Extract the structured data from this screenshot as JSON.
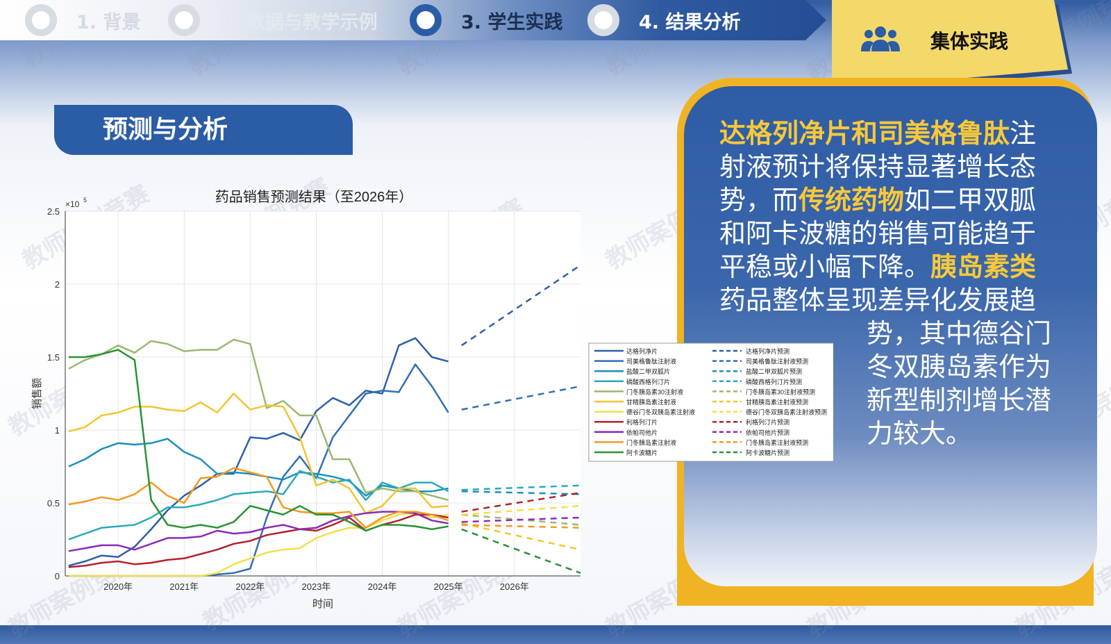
{
  "nav": {
    "steps": [
      {
        "label": "1. 背景",
        "state": "done"
      },
      {
        "label": "2. 数据与教学示例",
        "state": "done"
      },
      {
        "label": "3. 学生实践",
        "state": "active"
      },
      {
        "label": "4. 结果分析",
        "state": "upcoming"
      }
    ],
    "tab_label": "集体实践",
    "tab_icon": "group-people-icon"
  },
  "watermark_text": "教师案例竞赛",
  "section_title": "预测与分析",
  "panel": {
    "segments": [
      {
        "text": "达格列净片和司美格鲁肽",
        "highlight": true
      },
      {
        "text": "注射液预计将保持显著增长态势，而",
        "highlight": false
      },
      {
        "text": "传统药物",
        "highlight": true
      },
      {
        "text": "如二甲双胍和阿卡波糖的销售可能趋于平稳或小幅下降。",
        "highlight": false
      },
      {
        "text": "胰岛素类",
        "highlight": true
      },
      {
        "text": "药品整体呈现差异化发展趋",
        "highlight": false
      }
    ],
    "tail": "势，其中德谷门冬双胰岛素作为新型制剂增长潜力较大。"
  },
  "colors": {
    "primary": "#2b5ca6",
    "accent_yellow": "#f7c83a",
    "tab_yellow": "#f3d86a",
    "panel_border": "#f0b324"
  },
  "chart_data": {
    "type": "line",
    "title": "药品销售预测结果（至2026年）",
    "xlabel": "时间",
    "ylabel": "销售额",
    "y_exponent_label": "×10",
    "y_exponent_power": "5",
    "ylim": [
      0,
      2.5
    ],
    "yticks": [
      0,
      0.5,
      1,
      1.5,
      2,
      2.5
    ],
    "ytick_labels": [
      "0",
      "0.5",
      "1",
      "1.5",
      "2",
      "2.5"
    ],
    "xlim": [
      2019.2,
      2027.0
    ],
    "xticks": [
      2020,
      2021,
      2022,
      2023,
      2024,
      2025,
      2026
    ],
    "xtick_labels": [
      "2020年",
      "2021年",
      "2022年",
      "2023年",
      "2024年",
      "2025年",
      "2026年"
    ],
    "grid": true,
    "legend_placement": "right-outside",
    "x_hist": [
      2019.25,
      2019.5,
      2019.75,
      2020.0,
      2020.25,
      2020.5,
      2020.75,
      2021.0,
      2021.25,
      2021.5,
      2021.75,
      2022.0,
      2022.25,
      2022.5,
      2022.75,
      2023.0,
      2023.25,
      2023.5,
      2023.75,
      2024.0,
      2024.25,
      2024.5,
      2024.75,
      2025.0
    ],
    "x_fore": [
      2025.2,
      2027.0
    ],
    "series": [
      {
        "name": "达格列净片",
        "color": "#2e5fa8",
        "values": [
          0.07,
          0.1,
          0.14,
          0.13,
          0.2,
          0.32,
          0.45,
          0.55,
          0.62,
          0.7,
          0.7,
          0.95,
          0.94,
          0.98,
          0.93,
          1.13,
          1.22,
          1.17,
          1.27,
          1.25,
          1.58,
          1.63,
          1.5,
          1.47
        ],
        "forecast": [
          1.58,
          2.13
        ]
      },
      {
        "name": "司美格鲁肽注射液",
        "color": "#2f6fb5",
        "values": [
          0,
          0,
          0,
          0,
          0,
          0,
          0,
          0,
          0,
          0.01,
          0.02,
          0.05,
          0.4,
          0.68,
          0.82,
          0.67,
          0.95,
          1.1,
          1.25,
          1.27,
          1.26,
          1.45,
          1.3,
          1.12
        ],
        "forecast": [
          1.14,
          1.3
        ]
      },
      {
        "name": "盐酸二甲双胍片",
        "color": "#1a8fbf",
        "values": [
          0.75,
          0.8,
          0.87,
          0.91,
          0.9,
          0.91,
          0.94,
          0.85,
          0.8,
          0.7,
          0.71,
          0.7,
          0.68,
          0.66,
          0.71,
          0.7,
          0.68,
          0.65,
          0.55,
          0.62,
          0.6,
          0.58,
          0.58,
          0.6
        ],
        "forecast": [
          0.58,
          0.56
        ]
      },
      {
        "name": "磷酸西格列汀片",
        "color": "#2aa9b8",
        "values": [
          0.25,
          0.29,
          0.33,
          0.34,
          0.35,
          0.4,
          0.47,
          0.47,
          0.49,
          0.52,
          0.56,
          0.57,
          0.58,
          0.56,
          0.72,
          0.68,
          0.64,
          0.66,
          0.52,
          0.64,
          0.6,
          0.64,
          0.64,
          0.58
        ],
        "forecast": [
          0.59,
          0.62
        ]
      },
      {
        "name": "门冬胰岛素30注射液",
        "color": "#9ab86e",
        "values": [
          1.42,
          1.48,
          1.52,
          1.58,
          1.53,
          1.61,
          1.59,
          1.54,
          1.55,
          1.55,
          1.62,
          1.59,
          1.15,
          1.2,
          1.1,
          1.1,
          0.8,
          0.8,
          0.57,
          0.6,
          0.58,
          0.58,
          0.55,
          0.52
        ],
        "forecast": [
          0.42,
          0.35
        ]
      },
      {
        "name": "甘精胰岛素注射液",
        "color": "#f2c531",
        "values": [
          0.99,
          1.02,
          1.1,
          1.12,
          1.16,
          1.16,
          1.14,
          1.13,
          1.19,
          1.12,
          1.25,
          1.14,
          1.17,
          1.16,
          0.95,
          0.62,
          0.66,
          0.6,
          0.43,
          0.48,
          0.6,
          0.6,
          0.47,
          0.48
        ],
        "forecast": [
          0.36,
          0.18
        ]
      },
      {
        "name": "德谷门冬双胰岛素注射液",
        "color": "#f2e04a",
        "values": [
          0,
          0,
          0,
          0,
          0,
          0,
          0,
          0,
          0,
          0.02,
          0.08,
          0.12,
          0.16,
          0.18,
          0.19,
          0.26,
          0.3,
          0.33,
          0.33,
          0.38,
          0.42,
          0.43,
          0.4,
          0.42
        ],
        "forecast": [
          0.42,
          0.48
        ]
      },
      {
        "name": "利格列汀片",
        "color": "#b3212f",
        "values": [
          0.06,
          0.07,
          0.09,
          0.1,
          0.08,
          0.09,
          0.11,
          0.12,
          0.15,
          0.18,
          0.22,
          0.24,
          0.28,
          0.3,
          0.32,
          0.31,
          0.35,
          0.4,
          0.31,
          0.35,
          0.38,
          0.42,
          0.42,
          0.4
        ],
        "forecast": [
          0.44,
          0.57
        ]
      },
      {
        "name": "依帕司他片",
        "color": "#8a2bb8",
        "values": [
          0.17,
          0.19,
          0.21,
          0.21,
          0.18,
          0.22,
          0.26,
          0.26,
          0.27,
          0.31,
          0.29,
          0.3,
          0.33,
          0.35,
          0.32,
          0.33,
          0.38,
          0.41,
          0.43,
          0.44,
          0.44,
          0.43,
          0.38,
          0.36
        ],
        "forecast": [
          0.37,
          0.4
        ]
      },
      {
        "name": "门冬胰岛素注射液",
        "color": "#f39a1c",
        "values": [
          0.49,
          0.51,
          0.54,
          0.52,
          0.56,
          0.64,
          0.55,
          0.5,
          0.67,
          0.68,
          0.74,
          0.71,
          0.68,
          0.47,
          0.44,
          0.43,
          0.43,
          0.44,
          0.33,
          0.4,
          0.44,
          0.44,
          0.42,
          0.38
        ],
        "forecast": [
          0.35,
          0.33
        ]
      },
      {
        "name": "阿卡波糖片",
        "color": "#279334",
        "values": [
          1.5,
          1.5,
          1.52,
          1.55,
          1.48,
          0.52,
          0.35,
          0.33,
          0.35,
          0.33,
          0.37,
          0.48,
          0.45,
          0.42,
          0.48,
          0.42,
          0.42,
          0.37,
          0.31,
          0.35,
          0.35,
          0.34,
          0.32,
          0.34
        ],
        "forecast": [
          0.32,
          0.02
        ]
      }
    ],
    "forecast_suffix": "预测"
  }
}
